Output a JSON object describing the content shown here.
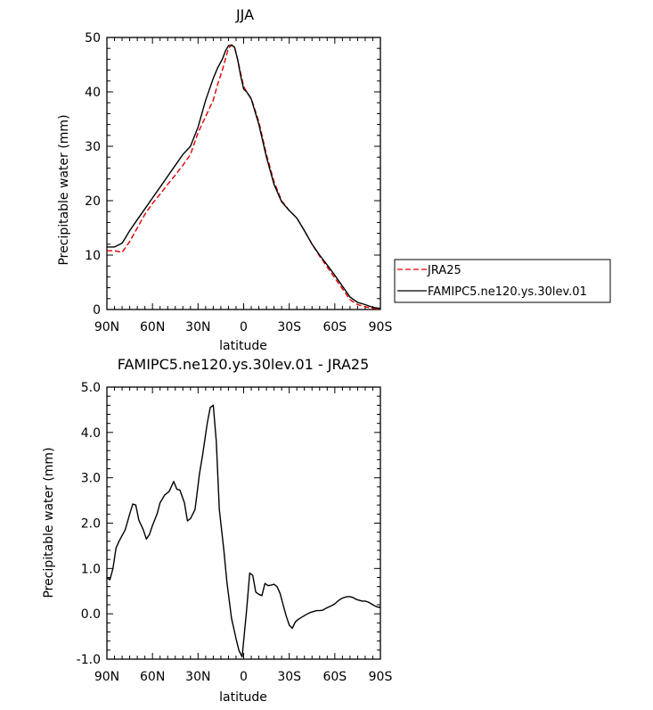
{
  "chart_data": [
    {
      "type": "line",
      "title": "JJA",
      "xlabel": "latitude",
      "ylabel": "Precipitable water (mm)",
      "xlim": [
        90,
        -90
      ],
      "ylim": [
        0,
        50
      ],
      "x_ticks": [
        90,
        60,
        30,
        0,
        -30,
        -60,
        -90
      ],
      "x_tick_labels": [
        "90N",
        "60N",
        "30N",
        "0",
        "30S",
        "60S",
        "90S"
      ],
      "y_ticks": [
        0,
        10,
        20,
        30,
        40,
        50
      ],
      "y_tick_labels": [
        "0",
        "10",
        "20",
        "30",
        "40",
        "50"
      ],
      "legend_position": "right",
      "series": [
        {
          "name": "JRA25",
          "color": "#e00000",
          "dash": "dashed",
          "x": [
            90,
            85,
            80,
            75,
            70,
            65,
            60,
            55,
            50,
            45,
            40,
            35,
            30,
            25,
            20,
            17,
            14,
            12,
            10,
            8,
            6,
            4,
            2,
            0,
            -2,
            -5,
            -10,
            -15,
            -20,
            -25,
            -30,
            -35,
            -40,
            -45,
            -50,
            -55,
            -60,
            -65,
            -70,
            -75,
            -80,
            -85,
            -90
          ],
          "y": [
            10.8,
            10.8,
            10.5,
            12.5,
            15,
            17.5,
            19.5,
            21.2,
            23,
            24.7,
            26.5,
            28.5,
            32.5,
            35.5,
            38.5,
            41.5,
            44,
            46,
            48,
            48.6,
            48.2,
            46,
            43.5,
            41,
            40,
            38.8,
            34.5,
            28.5,
            23.5,
            20,
            18.2,
            16.8,
            14.5,
            12,
            9.8,
            7.8,
            5.8,
            3.8,
            1.8,
            0.9,
            0.5,
            0.2,
            0.1
          ]
        },
        {
          "name": "FAMIPC5.ne120.ys.30lev.01",
          "color": "#000000",
          "dash": "solid",
          "x": [
            90,
            85,
            80,
            75,
            70,
            65,
            60,
            55,
            50,
            45,
            40,
            35,
            30,
            25,
            20,
            17,
            14,
            12,
            10,
            8,
            6,
            4,
            2,
            0,
            -2,
            -5,
            -10,
            -15,
            -20,
            -25,
            -30,
            -35,
            -40,
            -45,
            -50,
            -55,
            -60,
            -65,
            -70,
            -75,
            -80,
            -85,
            -90
          ],
          "y": [
            11.5,
            11.5,
            12.2,
            14.5,
            16.5,
            18.5,
            20.5,
            22.5,
            24.5,
            26.5,
            28.5,
            30,
            33.5,
            38.5,
            42.5,
            44.5,
            46,
            47.5,
            48.5,
            48.6,
            48.2,
            46,
            43,
            40.5,
            40,
            38.7,
            34,
            28,
            23,
            19.8,
            18.2,
            16.8,
            14.5,
            12,
            10,
            8.2,
            6.3,
            4.3,
            2.3,
            1.3,
            0.9,
            0.4,
            0.2
          ]
        }
      ]
    },
    {
      "type": "line",
      "title": "FAMIPC5.ne120.ys.30lev.01 - JRA25",
      "xlabel": "latitude",
      "ylabel": "Precipitable water (mm)",
      "xlim": [
        90,
        -90
      ],
      "ylim": [
        -1,
        5
      ],
      "x_ticks": [
        90,
        60,
        30,
        0,
        -30,
        -60,
        -90
      ],
      "x_tick_labels": [
        "90N",
        "60N",
        "30N",
        "0",
        "30S",
        "60S",
        "90S"
      ],
      "y_ticks": [
        -1,
        0,
        1,
        2,
        3,
        4,
        5
      ],
      "y_tick_labels": [
        "-1.0",
        "0.0",
        "1.0",
        "2.0",
        "3.0",
        "4.0",
        "5.0"
      ],
      "series": [
        {
          "color": "#000000",
          "dash": "solid",
          "x": [
            90,
            88,
            86,
            84,
            82,
            78,
            75,
            73,
            71,
            69,
            66,
            64,
            62,
            60,
            57,
            55,
            52,
            49,
            46,
            44,
            42,
            39,
            37,
            35,
            32,
            29,
            27,
            24,
            22,
            20,
            18,
            16,
            13,
            11,
            8,
            5,
            3,
            2,
            1,
            0,
            -2,
            -4,
            -6,
            -8,
            -10,
            -12,
            -14,
            -16,
            -18,
            -20,
            -22,
            -24,
            -26,
            -28,
            -30,
            -32,
            -34,
            -36,
            -38,
            -40,
            -42,
            -44,
            -46,
            -48,
            -50,
            -52,
            -54,
            -56,
            -58,
            -60,
            -62,
            -64,
            -66,
            -68,
            -70,
            -72,
            -74,
            -76,
            -78,
            -80,
            -82,
            -84,
            -86,
            -88,
            -90
          ],
          "y": [
            0.8,
            0.75,
            1.0,
            1.45,
            1.6,
            1.85,
            2.2,
            2.42,
            2.4,
            2.07,
            1.85,
            1.65,
            1.75,
            1.95,
            2.2,
            2.45,
            2.62,
            2.7,
            2.92,
            2.75,
            2.73,
            2.45,
            2.05,
            2.1,
            2.3,
            3.1,
            3.5,
            4.2,
            4.55,
            4.6,
            3.8,
            2.3,
            1.4,
            0.7,
            -0.1,
            -0.55,
            -0.82,
            -0.88,
            -0.95,
            -0.6,
            0.1,
            0.9,
            0.85,
            0.48,
            0.43,
            0.4,
            0.67,
            0.62,
            0.63,
            0.65,
            0.6,
            0.45,
            0.2,
            -0.05,
            -0.25,
            -0.32,
            -0.18,
            -0.12,
            -0.08,
            -0.04,
            0.0,
            0.03,
            0.05,
            0.07,
            0.07,
            0.08,
            0.12,
            0.15,
            0.18,
            0.22,
            0.28,
            0.33,
            0.36,
            0.38,
            0.38,
            0.36,
            0.32,
            0.3,
            0.28,
            0.28,
            0.26,
            0.22,
            0.18,
            0.15,
            0.14
          ]
        }
      ]
    }
  ]
}
